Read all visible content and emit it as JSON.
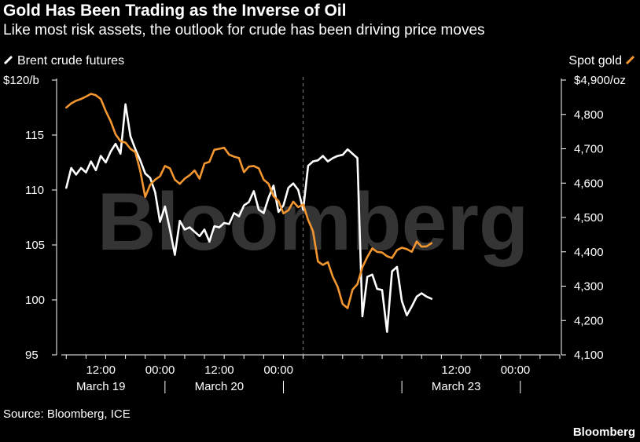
{
  "header": {
    "title": "Gold Has Been Trading as the Inverse of Oil",
    "subtitle": "Like most risk assets, the outlook for crude has been driving price moves"
  },
  "footer": {
    "source": "Source: Bloomberg, ICE",
    "brand": "Bloomberg"
  },
  "watermark": "Bloomberg",
  "colors": {
    "background": "#000000",
    "brent": "#ffffff",
    "gold": "#f3962f",
    "axis": "#ffffff",
    "divider": "#888888",
    "watermark": "#555555"
  },
  "chart_data": {
    "type": "line",
    "legend": {
      "left": "Brent crude futures",
      "right": "Spot gold"
    },
    "y_left": {
      "ylim": [
        95,
        120
      ],
      "ticks": [
        95,
        100,
        105,
        110,
        115,
        120
      ],
      "tick_labels": [
        "95",
        "100",
        "105",
        "110",
        "115",
        "$120/b"
      ]
    },
    "y_right": {
      "ylim": [
        4100,
        4900
      ],
      "ticks": [
        4100,
        4200,
        4300,
        4400,
        4500,
        4600,
        4700,
        4800,
        4900
      ],
      "tick_labels": [
        "4,100",
        "4,200",
        "4,300",
        "4,400",
        "4,500",
        "4,600",
        "4,700",
        "4,800",
        "$4,900/oz"
      ]
    },
    "x_axis": {
      "range_hours": [
        0,
        101
      ],
      "time_ticks": [
        {
          "hour": 8,
          "label": "12:00"
        },
        {
          "hour": 20,
          "label": "00:00"
        },
        {
          "hour": 32,
          "label": "12:00"
        },
        {
          "hour": 44,
          "label": "00:00"
        },
        {
          "hour": 80,
          "label": "12:00"
        },
        {
          "hour": 92,
          "label": "00:00"
        }
      ],
      "day_labels": [
        {
          "hour": 8,
          "label": "March 19"
        },
        {
          "hour": 32,
          "label": "March 20"
        },
        {
          "hour": 80,
          "label": "March 23"
        }
      ],
      "day_separators": [
        21,
        45,
        69,
        93
      ],
      "weekend_break_hour": 49
    },
    "series": [
      {
        "name": "Brent crude futures",
        "axis": "left",
        "points": [
          [
            1,
            110.2
          ],
          [
            2,
            112.0
          ],
          [
            3,
            111.4
          ],
          [
            4,
            112.0
          ],
          [
            5,
            111.6
          ],
          [
            6,
            112.6
          ],
          [
            7,
            111.8
          ],
          [
            8,
            113.1
          ],
          [
            9,
            112.5
          ],
          [
            10,
            113.5
          ],
          [
            11,
            114.2
          ],
          [
            12,
            113.3
          ],
          [
            13,
            117.8
          ],
          [
            14,
            114.9
          ],
          [
            15,
            113.7
          ],
          [
            16,
            112.7
          ],
          [
            17,
            111.5
          ],
          [
            18,
            111.1
          ],
          [
            19,
            109.8
          ],
          [
            20,
            107.1
          ],
          [
            21,
            108.5
          ],
          [
            22,
            106.4
          ],
          [
            23,
            104.1
          ],
          [
            24,
            107.2
          ],
          [
            25,
            106.4
          ],
          [
            26,
            106.6
          ],
          [
            27,
            106.2
          ],
          [
            28,
            105.8
          ],
          [
            29,
            106.4
          ],
          [
            30,
            105.3
          ],
          [
            31,
            106.7
          ],
          [
            32,
            106.6
          ],
          [
            33,
            107.0
          ],
          [
            34,
            106.9
          ],
          [
            35,
            107.9
          ],
          [
            36,
            107.6
          ],
          [
            37,
            108.6
          ],
          [
            38,
            108.9
          ],
          [
            39,
            109.9
          ],
          [
            40,
            108.2
          ],
          [
            41,
            107.9
          ],
          [
            42,
            109.3
          ],
          [
            43,
            110.4
          ],
          [
            44,
            108.0
          ],
          [
            45,
            108.6
          ],
          [
            46,
            110.2
          ],
          [
            47,
            110.6
          ],
          [
            48,
            110.0
          ],
          [
            49,
            108.2
          ],
          [
            50,
            112.2
          ],
          [
            51,
            112.6
          ],
          [
            52,
            112.7
          ],
          [
            53,
            113.1
          ],
          [
            54,
            112.6
          ],
          [
            55,
            112.9
          ],
          [
            56,
            113.1
          ],
          [
            57,
            113.2
          ],
          [
            58,
            113.7
          ],
          [
            59,
            113.3
          ],
          [
            60,
            112.9
          ],
          [
            61,
            98.5
          ],
          [
            62,
            102.1
          ],
          [
            63,
            102.3
          ],
          [
            64,
            101.0
          ],
          [
            65,
            100.9
          ],
          [
            66,
            97.1
          ],
          [
            67,
            102.6
          ],
          [
            68,
            103.0
          ],
          [
            69,
            99.9
          ],
          [
            70,
            98.6
          ],
          [
            71,
            99.4
          ],
          [
            72,
            100.3
          ],
          [
            73,
            100.6
          ],
          [
            74,
            100.3
          ],
          [
            75,
            100.1
          ]
        ]
      },
      {
        "name": "Spot gold",
        "axis": "right",
        "points": [
          [
            1,
            4820
          ],
          [
            2,
            4832
          ],
          [
            3,
            4840
          ],
          [
            4,
            4845
          ],
          [
            5,
            4852
          ],
          [
            6,
            4860
          ],
          [
            7,
            4856
          ],
          [
            8,
            4845
          ],
          [
            9,
            4810
          ],
          [
            10,
            4780
          ],
          [
            11,
            4742
          ],
          [
            12,
            4722
          ],
          [
            13,
            4718
          ],
          [
            14,
            4700
          ],
          [
            15,
            4690
          ],
          [
            16,
            4635
          ],
          [
            17,
            4560
          ],
          [
            18,
            4595
          ],
          [
            19,
            4610
          ],
          [
            20,
            4620
          ],
          [
            21,
            4650
          ],
          [
            22,
            4643
          ],
          [
            23,
            4610
          ],
          [
            24,
            4598
          ],
          [
            25,
            4613
          ],
          [
            26,
            4623
          ],
          [
            27,
            4637
          ],
          [
            28,
            4613
          ],
          [
            29,
            4657
          ],
          [
            30,
            4662
          ],
          [
            31,
            4697
          ],
          [
            32,
            4700
          ],
          [
            33,
            4703
          ],
          [
            34,
            4683
          ],
          [
            35,
            4677
          ],
          [
            36,
            4673
          ],
          [
            37,
            4632
          ],
          [
            38,
            4648
          ],
          [
            39,
            4650
          ],
          [
            40,
            4643
          ],
          [
            41,
            4610
          ],
          [
            42,
            4598
          ],
          [
            43,
            4562
          ],
          [
            44,
            4548
          ],
          [
            45,
            4512
          ],
          [
            46,
            4521
          ],
          [
            47,
            4546
          ],
          [
            48,
            4530
          ],
          [
            49,
            4538
          ],
          [
            50,
            4493
          ],
          [
            51,
            4460
          ],
          [
            52,
            4372
          ],
          [
            53,
            4362
          ],
          [
            54,
            4370
          ],
          [
            55,
            4328
          ],
          [
            56,
            4298
          ],
          [
            57,
            4248
          ],
          [
            58,
            4236
          ],
          [
            59,
            4290
          ],
          [
            60,
            4306
          ],
          [
            61,
            4355
          ],
          [
            62,
            4385
          ],
          [
            63,
            4410
          ],
          [
            64,
            4400
          ],
          [
            65,
            4398
          ],
          [
            66,
            4387
          ],
          [
            67,
            4382
          ],
          [
            68,
            4405
          ],
          [
            69,
            4412
          ],
          [
            70,
            4408
          ],
          [
            71,
            4400
          ],
          [
            72,
            4430
          ],
          [
            73,
            4415
          ],
          [
            74,
            4416
          ],
          [
            75,
            4425
          ]
        ]
      }
    ]
  }
}
